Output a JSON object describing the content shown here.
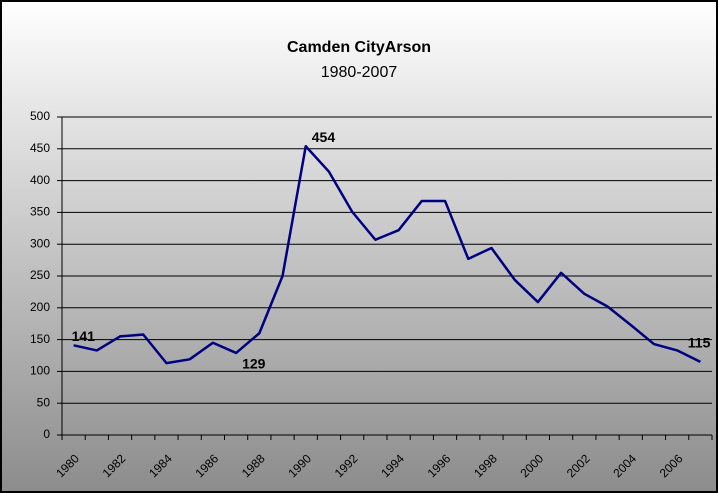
{
  "chart_data": {
    "type": "line",
    "title": "Camden CityArson",
    "subtitle": "1980-2007",
    "categories": [
      "1980",
      null,
      "1982",
      null,
      "1984",
      null,
      "1986",
      null,
      "1988",
      null,
      "1990",
      null,
      "1992",
      null,
      "1994",
      null,
      "1996",
      null,
      "1998",
      null,
      "2000",
      null,
      "2002",
      null,
      "2004",
      null,
      "2006",
      null
    ],
    "series": [
      {
        "name": "Arson",
        "color": "#000080",
        "values": [
          141,
          133,
          155,
          158,
          113,
          119,
          145,
          129,
          160,
          250,
          454,
          414,
          351,
          307,
          322,
          368,
          368,
          277,
          294,
          244,
          209,
          255,
          222,
          202,
          173,
          143,
          133,
          115
        ],
        "value_labels": [
          "141",
          null,
          null,
          null,
          null,
          null,
          null,
          "129",
          null,
          null,
          "454",
          null,
          null,
          null,
          null,
          null,
          null,
          null,
          null,
          null,
          null,
          null,
          null,
          null,
          null,
          null,
          null,
          "115"
        ]
      }
    ],
    "ylim": [
      0,
      500
    ],
    "yticks": [
      0,
      50,
      100,
      150,
      200,
      250,
      300,
      350,
      400,
      450,
      500
    ],
    "grid": true
  }
}
